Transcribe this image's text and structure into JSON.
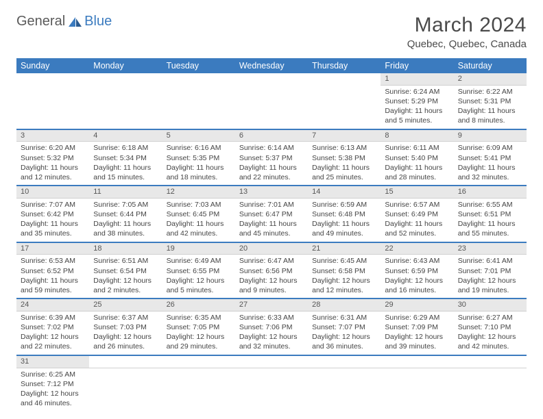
{
  "logo": {
    "general": "General",
    "blue": "Blue"
  },
  "title": "March 2024",
  "location": "Quebec, Quebec, Canada",
  "colors": {
    "header_bg": "#3b7bbf",
    "header_text": "#ffffff",
    "daynum_bg": "#e8e8e8",
    "row_border": "#3b7bbf",
    "text": "#444444",
    "title_text": "#4a4a4a"
  },
  "weekdays": [
    "Sunday",
    "Monday",
    "Tuesday",
    "Wednesday",
    "Thursday",
    "Friday",
    "Saturday"
  ],
  "weeks": [
    {
      "days": [
        null,
        null,
        null,
        null,
        null,
        {
          "num": "1",
          "sunrise": "Sunrise: 6:24 AM",
          "sunset": "Sunset: 5:29 PM",
          "daylight": "Daylight: 11 hours and 5 minutes."
        },
        {
          "num": "2",
          "sunrise": "Sunrise: 6:22 AM",
          "sunset": "Sunset: 5:31 PM",
          "daylight": "Daylight: 11 hours and 8 minutes."
        }
      ]
    },
    {
      "days": [
        {
          "num": "3",
          "sunrise": "Sunrise: 6:20 AM",
          "sunset": "Sunset: 5:32 PM",
          "daylight": "Daylight: 11 hours and 12 minutes."
        },
        {
          "num": "4",
          "sunrise": "Sunrise: 6:18 AM",
          "sunset": "Sunset: 5:34 PM",
          "daylight": "Daylight: 11 hours and 15 minutes."
        },
        {
          "num": "5",
          "sunrise": "Sunrise: 6:16 AM",
          "sunset": "Sunset: 5:35 PM",
          "daylight": "Daylight: 11 hours and 18 minutes."
        },
        {
          "num": "6",
          "sunrise": "Sunrise: 6:14 AM",
          "sunset": "Sunset: 5:37 PM",
          "daylight": "Daylight: 11 hours and 22 minutes."
        },
        {
          "num": "7",
          "sunrise": "Sunrise: 6:13 AM",
          "sunset": "Sunset: 5:38 PM",
          "daylight": "Daylight: 11 hours and 25 minutes."
        },
        {
          "num": "8",
          "sunrise": "Sunrise: 6:11 AM",
          "sunset": "Sunset: 5:40 PM",
          "daylight": "Daylight: 11 hours and 28 minutes."
        },
        {
          "num": "9",
          "sunrise": "Sunrise: 6:09 AM",
          "sunset": "Sunset: 5:41 PM",
          "daylight": "Daylight: 11 hours and 32 minutes."
        }
      ]
    },
    {
      "days": [
        {
          "num": "10",
          "sunrise": "Sunrise: 7:07 AM",
          "sunset": "Sunset: 6:42 PM",
          "daylight": "Daylight: 11 hours and 35 minutes."
        },
        {
          "num": "11",
          "sunrise": "Sunrise: 7:05 AM",
          "sunset": "Sunset: 6:44 PM",
          "daylight": "Daylight: 11 hours and 38 minutes."
        },
        {
          "num": "12",
          "sunrise": "Sunrise: 7:03 AM",
          "sunset": "Sunset: 6:45 PM",
          "daylight": "Daylight: 11 hours and 42 minutes."
        },
        {
          "num": "13",
          "sunrise": "Sunrise: 7:01 AM",
          "sunset": "Sunset: 6:47 PM",
          "daylight": "Daylight: 11 hours and 45 minutes."
        },
        {
          "num": "14",
          "sunrise": "Sunrise: 6:59 AM",
          "sunset": "Sunset: 6:48 PM",
          "daylight": "Daylight: 11 hours and 49 minutes."
        },
        {
          "num": "15",
          "sunrise": "Sunrise: 6:57 AM",
          "sunset": "Sunset: 6:49 PM",
          "daylight": "Daylight: 11 hours and 52 minutes."
        },
        {
          "num": "16",
          "sunrise": "Sunrise: 6:55 AM",
          "sunset": "Sunset: 6:51 PM",
          "daylight": "Daylight: 11 hours and 55 minutes."
        }
      ]
    },
    {
      "days": [
        {
          "num": "17",
          "sunrise": "Sunrise: 6:53 AM",
          "sunset": "Sunset: 6:52 PM",
          "daylight": "Daylight: 11 hours and 59 minutes."
        },
        {
          "num": "18",
          "sunrise": "Sunrise: 6:51 AM",
          "sunset": "Sunset: 6:54 PM",
          "daylight": "Daylight: 12 hours and 2 minutes."
        },
        {
          "num": "19",
          "sunrise": "Sunrise: 6:49 AM",
          "sunset": "Sunset: 6:55 PM",
          "daylight": "Daylight: 12 hours and 5 minutes."
        },
        {
          "num": "20",
          "sunrise": "Sunrise: 6:47 AM",
          "sunset": "Sunset: 6:56 PM",
          "daylight": "Daylight: 12 hours and 9 minutes."
        },
        {
          "num": "21",
          "sunrise": "Sunrise: 6:45 AM",
          "sunset": "Sunset: 6:58 PM",
          "daylight": "Daylight: 12 hours and 12 minutes."
        },
        {
          "num": "22",
          "sunrise": "Sunrise: 6:43 AM",
          "sunset": "Sunset: 6:59 PM",
          "daylight": "Daylight: 12 hours and 16 minutes."
        },
        {
          "num": "23",
          "sunrise": "Sunrise: 6:41 AM",
          "sunset": "Sunset: 7:01 PM",
          "daylight": "Daylight: 12 hours and 19 minutes."
        }
      ]
    },
    {
      "days": [
        {
          "num": "24",
          "sunrise": "Sunrise: 6:39 AM",
          "sunset": "Sunset: 7:02 PM",
          "daylight": "Daylight: 12 hours and 22 minutes."
        },
        {
          "num": "25",
          "sunrise": "Sunrise: 6:37 AM",
          "sunset": "Sunset: 7:03 PM",
          "daylight": "Daylight: 12 hours and 26 minutes."
        },
        {
          "num": "26",
          "sunrise": "Sunrise: 6:35 AM",
          "sunset": "Sunset: 7:05 PM",
          "daylight": "Daylight: 12 hours and 29 minutes."
        },
        {
          "num": "27",
          "sunrise": "Sunrise: 6:33 AM",
          "sunset": "Sunset: 7:06 PM",
          "daylight": "Daylight: 12 hours and 32 minutes."
        },
        {
          "num": "28",
          "sunrise": "Sunrise: 6:31 AM",
          "sunset": "Sunset: 7:07 PM",
          "daylight": "Daylight: 12 hours and 36 minutes."
        },
        {
          "num": "29",
          "sunrise": "Sunrise: 6:29 AM",
          "sunset": "Sunset: 7:09 PM",
          "daylight": "Daylight: 12 hours and 39 minutes."
        },
        {
          "num": "30",
          "sunrise": "Sunrise: 6:27 AM",
          "sunset": "Sunset: 7:10 PM",
          "daylight": "Daylight: 12 hours and 42 minutes."
        }
      ]
    },
    {
      "days": [
        {
          "num": "31",
          "sunrise": "Sunrise: 6:25 AM",
          "sunset": "Sunset: 7:12 PM",
          "daylight": "Daylight: 12 hours and 46 minutes."
        },
        null,
        null,
        null,
        null,
        null,
        null
      ]
    }
  ]
}
